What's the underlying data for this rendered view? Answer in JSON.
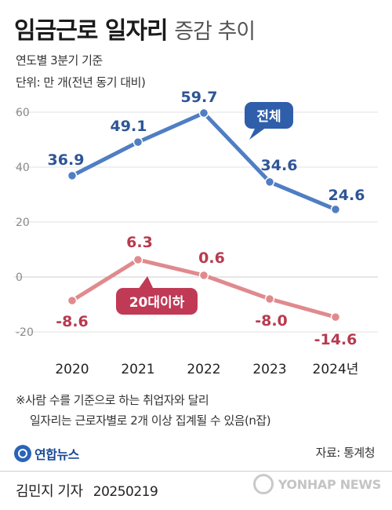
{
  "header": {
    "title_bold": "임금근로 일자리",
    "title_light": "증감 추이",
    "subtitle_1": "연도별 3분기 기준",
    "subtitle_2": "단위: 만 개(전년 동기 대비)"
  },
  "chart_data": {
    "type": "line",
    "categories": [
      "2020",
      "2021",
      "2022",
      "2023",
      "2024년"
    ],
    "series": [
      {
        "name": "전체",
        "values": [
          36.9,
          49.1,
          59.7,
          34.6,
          24.6
        ],
        "labels": [
          "36.9",
          "49.1",
          "59.7",
          "34.6",
          "24.6"
        ],
        "color": "#4f7ec3"
      },
      {
        "name": "20대이하",
        "values": [
          -8.6,
          6.3,
          0.6,
          -8.0,
          -14.6
        ],
        "labels": [
          "-8.6",
          "6.3",
          "0.6",
          "-8.0",
          "-14.6"
        ],
        "color": "#e08a8e"
      }
    ],
    "y_ticks": [
      "60",
      "40",
      "20",
      "0",
      "-20"
    ],
    "ylim": [
      -20,
      60
    ],
    "grid": true,
    "label_colors": {
      "전체": "#2e5597",
      "20대이하": "#b83a50"
    },
    "callout_colors": {
      "전체": "#2f5eab",
      "20대이하": "#c03a56"
    }
  },
  "footnote": {
    "line1": "※사람 수를 기준으로 하는 취업자와 달리",
    "line2": "일자리는 근로자별로 2개 이상 집계될 수 있음(n잡)"
  },
  "brand": {
    "logo_text": "연합뉴스",
    "logo_icon": "yonhap-logo-icon"
  },
  "source": "자료: 통계청",
  "reporter": {
    "name": "김민지 기자",
    "date": "20250219"
  },
  "watermark": {
    "text": "YONHAP NEWS",
    "icon": "yonhap-watermark-icon"
  }
}
